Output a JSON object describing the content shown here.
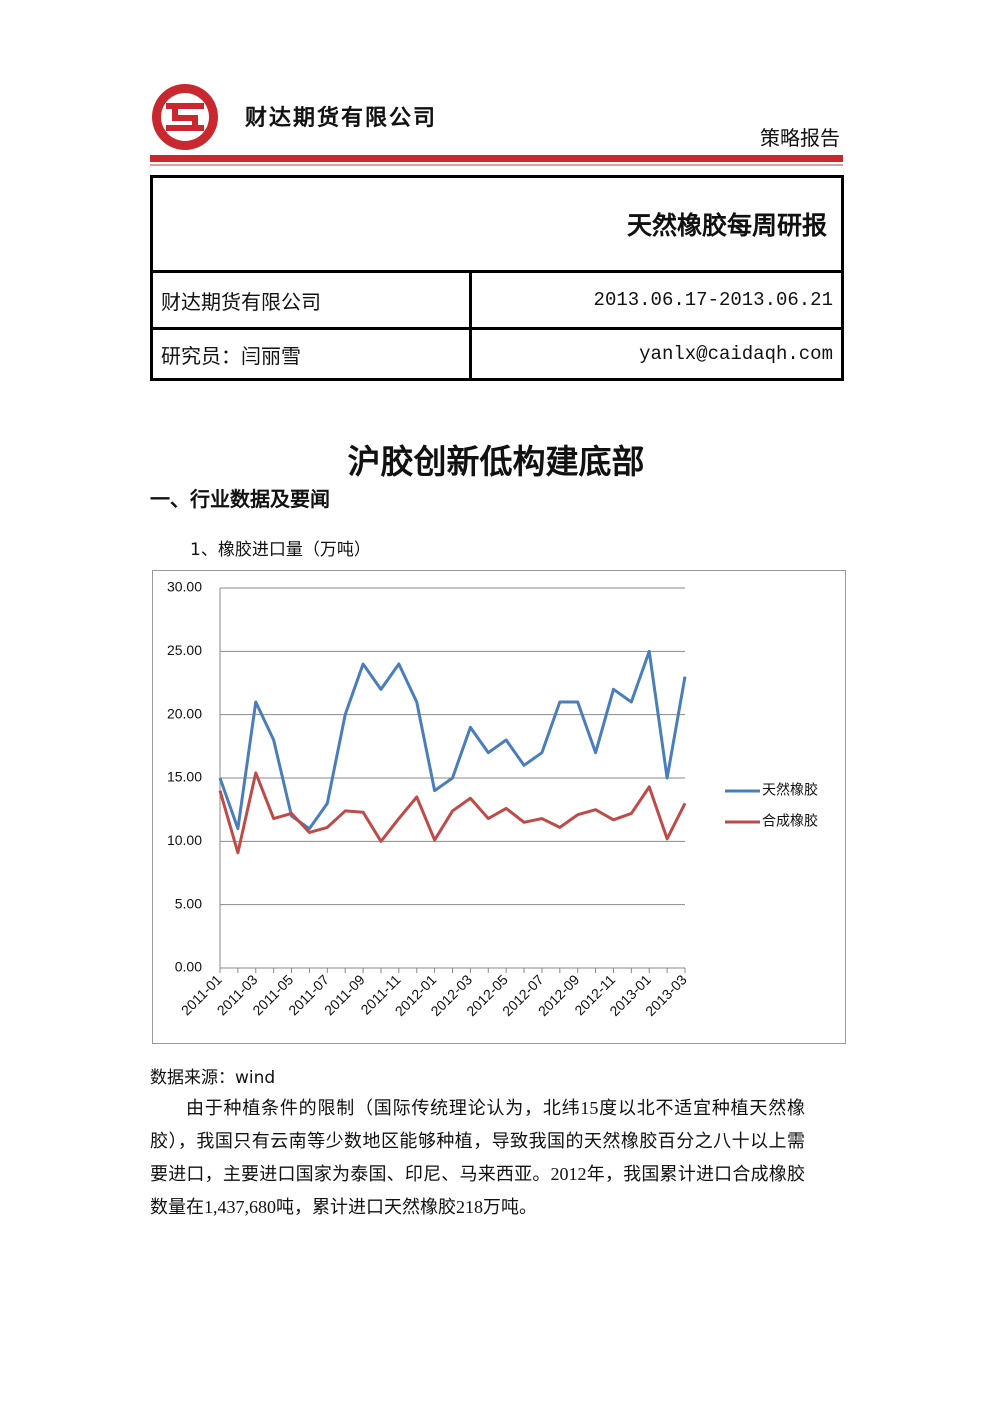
{
  "header": {
    "company": "财达期货有限公司",
    "report_type": "策略报告"
  },
  "table": {
    "title": "天然橡胶每周研报",
    "rows": [
      [
        "财达期货有限公司",
        "2013.06.17-2013.06.21"
      ],
      [
        "研究员：闫丽雪",
        "yanlx@caidaqh.com"
      ]
    ]
  },
  "headline": "沪胶创新低构建底部",
  "section": "一、行业数据及要闻",
  "chart_caption": "1、橡胶进口量（万吨）",
  "chart_data": {
    "type": "line",
    "categories": [
      "2011-01",
      null,
      "2011-03",
      null,
      "2011-05",
      null,
      "2011-07",
      null,
      "2011-09",
      null,
      "2011-11",
      null,
      "2012-01",
      null,
      "2012-03",
      null,
      "2012-05",
      null,
      "2012-07",
      null,
      "2012-09",
      null,
      "2012-11",
      null,
      "2013-01",
      null,
      "2013-03"
    ],
    "series": [
      {
        "name": "天然橡胶",
        "color": "#4a7ebb",
        "values": [
          15,
          11,
          21,
          18,
          12,
          11,
          13,
          20,
          24,
          22,
          24,
          21,
          14,
          15,
          19,
          17,
          18,
          16,
          17,
          21,
          21,
          17,
          22,
          21,
          25,
          15,
          23
        ]
      },
      {
        "name": "合成橡胶",
        "color": "#be4b48",
        "values": [
          14,
          9.1,
          15.4,
          11.8,
          12.2,
          10.7,
          11.1,
          12.4,
          12.3,
          10,
          11.8,
          13.5,
          10.1,
          12.4,
          13.4,
          11.8,
          12.6,
          11.5,
          11.8,
          11.1,
          12.1,
          12.5,
          11.7,
          12.2,
          14.3,
          10.2,
          13
        ]
      }
    ],
    "ylim": [
      0,
      30
    ],
    "yticks": [
      {
        "value": 0,
        "label": "0.00"
      },
      {
        "value": 5,
        "label": "5.00"
      },
      {
        "value": 10,
        "label": "10.00"
      },
      {
        "value": 15,
        "label": "15.00"
      },
      {
        "value": 20,
        "label": "20.00"
      },
      {
        "value": 25,
        "label": "25.00"
      },
      {
        "value": 30,
        "label": "30.00"
      }
    ],
    "grid": true,
    "legend": "right"
  },
  "source": "数据来源：wind",
  "paragraph": "由于种植条件的限制（国际传统理论认为，北纬15度以北不适宜种植天然橡胶），我国只有云南等少数地区能够种植，导致我国的天然橡胶百分之八十以上需要进口，主要进口国家为泰国、印尼、马来西亚。2012年，我国累计进口合成橡胶数量在1,437,680吨，累计进口天然橡胶218万吨。"
}
